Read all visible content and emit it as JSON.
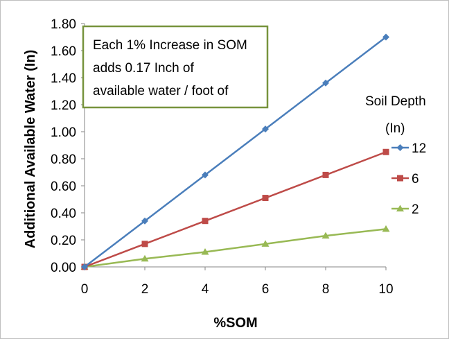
{
  "chart_data": {
    "type": "line",
    "x": [
      0,
      2,
      4,
      6,
      8,
      10
    ],
    "series": [
      {
        "name": "12",
        "values": [
          0.0,
          0.34,
          0.68,
          1.02,
          1.36,
          1.7
        ],
        "color": "#4a7ebb",
        "marker": "diamond"
      },
      {
        "name": "6",
        "values": [
          0.0,
          0.17,
          0.34,
          0.51,
          0.68,
          0.85
        ],
        "color": "#be4b48",
        "marker": "square"
      },
      {
        "name": "2",
        "values": [
          0.0,
          0.06,
          0.11,
          0.17,
          0.23,
          0.28
        ],
        "color": "#98b954",
        "marker": "triangle"
      }
    ],
    "xlabel": "%SOM",
    "ylabel": "Additional Available Water (In)",
    "xlim": [
      0,
      10
    ],
    "ylim": [
      0,
      1.8
    ],
    "xticks": [
      "0",
      "2",
      "4",
      "6",
      "8",
      "10"
    ],
    "yticks": [
      "0.00",
      "0.20",
      "0.40",
      "0.60",
      "0.80",
      "1.00",
      "1.20",
      "1.40",
      "1.60",
      "1.80"
    ],
    "legend_title": [
      "Soil Depth",
      "(In)"
    ],
    "legend_position": "right",
    "annotation": [
      "Each 1% Increase in SOM",
      "adds 0.17 Inch of",
      "available water / foot of"
    ],
    "annotation_border_color": "#77933c",
    "grid": false
  }
}
